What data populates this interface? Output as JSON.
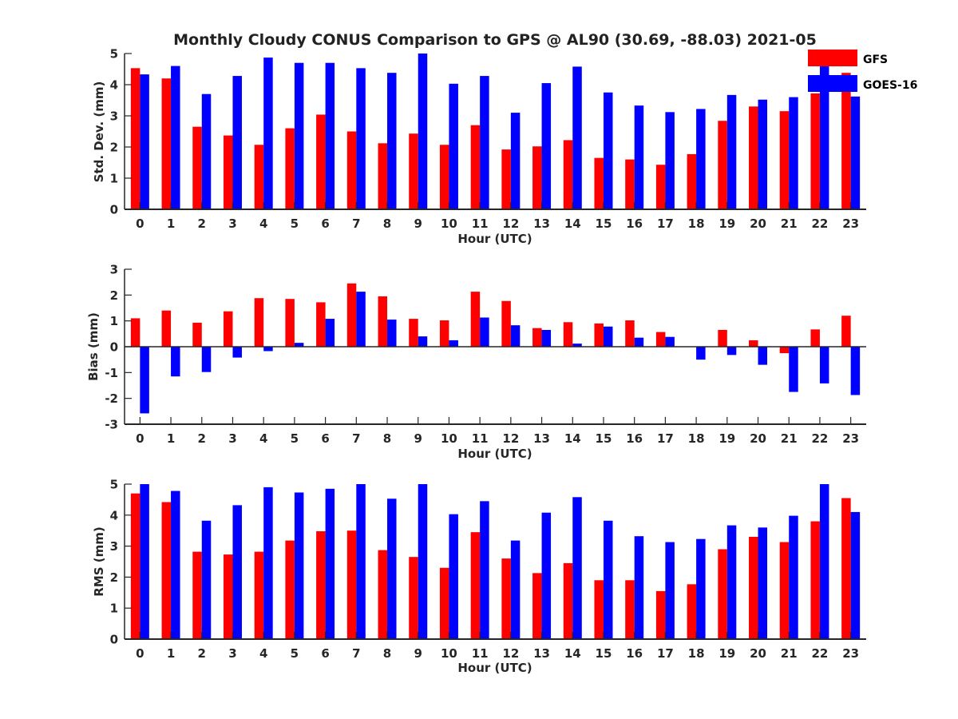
{
  "chart_data": [
    {
      "type": "bar",
      "title": "Monthly Cloudy CONUS Comparison to GPS @ AL90 (30.69, -88.03) 2021-05",
      "xlabel": "Hour (UTC)",
      "ylabel": "Std. Dev. (mm)",
      "ylim": [
        0,
        5
      ],
      "yticks": [
        "0",
        "1",
        "2",
        "3",
        "4",
        "5"
      ],
      "categories": [
        "0",
        "1",
        "2",
        "3",
        "4",
        "5",
        "6",
        "7",
        "8",
        "9",
        "10",
        "11",
        "12",
        "13",
        "14",
        "15",
        "16",
        "17",
        "18",
        "19",
        "20",
        "21",
        "22",
        "23"
      ],
      "series": [
        {
          "name": "GFS",
          "color": "#ff0000",
          "values": [
            4.53,
            4.2,
            2.65,
            2.37,
            2.07,
            2.6,
            3.04,
            2.5,
            2.12,
            2.43,
            2.07,
            2.7,
            1.92,
            2.02,
            2.22,
            1.65,
            1.6,
            1.43,
            1.77,
            2.84,
            3.3,
            3.15,
            3.72,
            4.38
          ]
        },
        {
          "name": "GOES-16",
          "color": "#0000ff",
          "values": [
            4.33,
            4.6,
            3.7,
            4.28,
            4.87,
            4.7,
            4.7,
            4.53,
            4.38,
            5.0,
            4.03,
            4.28,
            3.1,
            4.05,
            4.58,
            3.75,
            3.33,
            3.12,
            3.22,
            3.67,
            3.52,
            3.6,
            4.75,
            3.62
          ]
        }
      ],
      "legend": {
        "position": "top-right",
        "entries": [
          "GFS",
          "GOES-16"
        ]
      }
    },
    {
      "type": "bar",
      "xlabel": "Hour (UTC)",
      "ylabel": "Bias (mm)",
      "ylim": [
        -3,
        3
      ],
      "yticks": [
        "-3",
        "-2",
        "-1",
        "0",
        "1",
        "2",
        "3"
      ],
      "categories": [
        "0",
        "1",
        "2",
        "3",
        "4",
        "5",
        "6",
        "7",
        "8",
        "9",
        "10",
        "11",
        "12",
        "13",
        "14",
        "15",
        "16",
        "17",
        "18",
        "19",
        "20",
        "21",
        "22",
        "23"
      ],
      "series": [
        {
          "name": "GFS",
          "color": "#ff0000",
          "values": [
            1.1,
            1.4,
            0.93,
            1.37,
            1.88,
            1.85,
            1.72,
            2.45,
            1.95,
            1.08,
            1.02,
            2.13,
            1.77,
            0.72,
            0.95,
            0.9,
            1.02,
            0.57,
            0,
            0.65,
            0.25,
            -0.25,
            0.67,
            1.2
          ]
        },
        {
          "name": "GOES-16",
          "color": "#0000ff",
          "values": [
            -2.58,
            -1.15,
            -0.98,
            -0.42,
            -0.17,
            0.15,
            1.08,
            2.13,
            1.05,
            0.4,
            0.25,
            1.13,
            0.83,
            0.65,
            0.12,
            0.78,
            0.35,
            0.38,
            -0.5,
            -0.32,
            -0.7,
            -1.75,
            -1.42,
            -1.87
          ]
        }
      ]
    },
    {
      "type": "bar",
      "xlabel": "Hour (UTC)",
      "ylabel": "RMS (mm)",
      "ylim": [
        0,
        5
      ],
      "yticks": [
        "0",
        "1",
        "2",
        "3",
        "4",
        "5"
      ],
      "categories": [
        "0",
        "1",
        "2",
        "3",
        "4",
        "5",
        "6",
        "7",
        "8",
        "9",
        "10",
        "11",
        "12",
        "13",
        "14",
        "15",
        "16",
        "17",
        "18",
        "19",
        "20",
        "21",
        "22",
        "23"
      ],
      "series": [
        {
          "name": "GFS",
          "color": "#ff0000",
          "values": [
            4.7,
            4.42,
            2.82,
            2.73,
            2.82,
            3.18,
            3.48,
            3.5,
            2.87,
            2.65,
            2.3,
            3.45,
            2.6,
            2.13,
            2.45,
            1.9,
            1.9,
            1.55,
            1.77,
            2.9,
            3.3,
            3.13,
            3.8,
            4.55
          ]
        },
        {
          "name": "GOES-16",
          "color": "#0000ff",
          "values": [
            5.0,
            4.78,
            3.82,
            4.32,
            4.9,
            4.73,
            4.85,
            5.0,
            4.53,
            5.0,
            4.03,
            4.45,
            3.18,
            4.08,
            4.58,
            3.82,
            3.32,
            3.13,
            3.23,
            3.67,
            3.6,
            3.98,
            5.0,
            4.1
          ]
        }
      ]
    }
  ]
}
